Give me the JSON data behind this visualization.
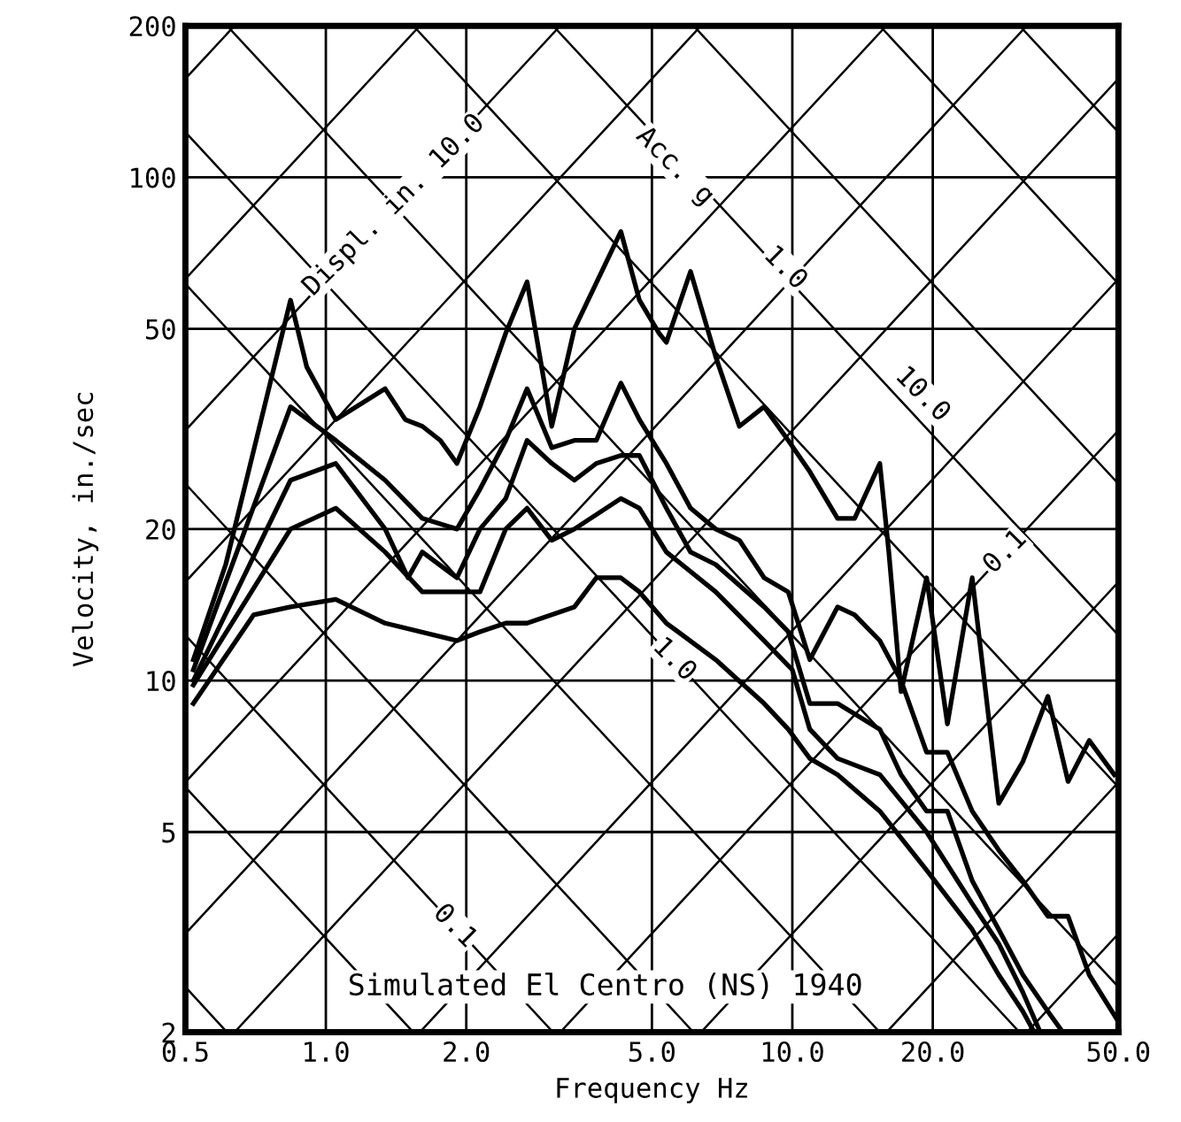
{
  "chart_data": {
    "type": "line",
    "xlabel": "Frequency Hz",
    "ylabel": "Velocity, in./sec",
    "log": "xy",
    "grid": true,
    "xlim": [
      0.5,
      50
    ],
    "ylim": [
      2,
      200
    ],
    "xticks": [
      0.5,
      {
        "value": 1,
        "label": "1.0"
      },
      {
        "value": 2,
        "label": "2.0"
      },
      {
        "value": 5,
        "label": "5.0"
      },
      {
        "value": 10,
        "label": "10.0"
      },
      {
        "value": 20,
        "label": "20.0"
      },
      {
        "value": 50,
        "label": "50.0"
      }
    ],
    "yticks": [
      2,
      5,
      10,
      20,
      50,
      100,
      200
    ],
    "series": [
      {
        "color": "#000000",
        "x": [
          0.52,
          0.61,
          0.84,
          0.91,
          1.05,
          1.34,
          1.48,
          1.61,
          1.76,
          1.91,
          2.14,
          2.43,
          2.7,
          3.05,
          3.41,
          4.29,
          4.7,
          5.18,
          5.37,
          6.05,
          6.85,
          7.7,
          8.7,
          9.8,
          10.9,
          12.5,
          13.6,
          15.4,
          16.1,
          17.1,
          19.4,
          21.5,
          24.3,
          27.7,
          31.2,
          35.3,
          39,
          43.3,
          49
        ],
        "values": [
          11,
          17,
          57,
          42,
          33,
          38,
          33,
          32,
          30,
          27,
          35,
          49,
          62,
          32,
          50,
          78,
          57,
          49,
          47,
          65,
          44,
          32,
          35,
          30,
          26,
          21,
          21,
          27,
          18,
          9.5,
          16,
          8.2,
          16,
          5.7,
          6.9,
          9.3,
          6.3,
          7.6,
          6.5
        ]
      },
      {
        "color": "#000000",
        "x": [
          0.52,
          0.84,
          1.05,
          1.34,
          1.61,
          1.91,
          2.14,
          2.43,
          2.7,
          3.05,
          3.41,
          3.8,
          4.29,
          4.7,
          5.37,
          6.05,
          6.85,
          7.7,
          8.7,
          9.8,
          10.9,
          12.5,
          13.6,
          15.4,
          17.1,
          19.4,
          21.5,
          24.3,
          27.7,
          31.2,
          35.3,
          39,
          43.3,
          50
        ],
        "values": [
          10.5,
          35,
          30,
          25,
          21,
          20,
          24,
          30,
          38,
          29,
          30,
          30,
          39,
          33,
          27,
          22,
          20,
          19,
          16,
          15,
          11,
          14,
          13.5,
          12,
          10,
          7.2,
          7.2,
          5.5,
          4.6,
          4,
          3.4,
          3.4,
          2.6,
          2.1
        ]
      },
      {
        "color": "#000000",
        "x": [
          0.52,
          0.84,
          1.05,
          1.34,
          1.5,
          1.61,
          1.91,
          2.14,
          2.43,
          2.7,
          3.05,
          3.41,
          3.8,
          4.29,
          4.7,
          5.37,
          6.05,
          6.85,
          8.7,
          9.8,
          10.9,
          12.5,
          15.4,
          17.1,
          19.4,
          21.5,
          24.3,
          27.7,
          31.2,
          35.3,
          38
        ],
        "values": [
          10,
          25,
          27,
          20,
          16,
          18,
          16,
          20,
          23,
          30,
          27,
          25,
          27,
          28,
          28,
          22,
          18,
          17,
          14,
          12.5,
          9,
          9,
          8,
          6.5,
          5.5,
          5.5,
          4,
          3.2,
          2.6,
          2.2,
          2
        ]
      },
      {
        "color": "#000000",
        "x": [
          0.52,
          0.84,
          1.05,
          1.34,
          1.61,
          2.14,
          2.43,
          2.7,
          3.05,
          3.41,
          4.29,
          4.7,
          5.37,
          6.85,
          8.7,
          10,
          10.9,
          12.5,
          15.4,
          19.4,
          24.3,
          27.7,
          31.2,
          34
        ],
        "values": [
          9.8,
          20,
          22,
          18,
          15,
          15,
          20,
          22,
          19,
          20,
          23,
          22,
          18,
          15,
          12,
          10.5,
          8,
          7,
          6.5,
          5,
          3.6,
          3,
          2.4,
          2
        ]
      },
      {
        "color": "#000000",
        "x": [
          0.52,
          0.7,
          0.84,
          1.05,
          1.34,
          1.91,
          2.14,
          2.43,
          2.7,
          3.41,
          3.8,
          4.29,
          4.7,
          5.37,
          6.85,
          8.7,
          9.8,
          10.9,
          12.5,
          15.4,
          19.4,
          24.3,
          27.7,
          31.2,
          33
        ],
        "values": [
          9,
          13.5,
          14,
          14.5,
          13,
          12,
          12.5,
          13,
          13,
          14,
          16,
          16,
          15,
          13,
          11,
          9,
          8,
          7,
          6.5,
          5.5,
          4.2,
          3.2,
          2.6,
          2.2,
          2
        ]
      },
      {
        "color": "#000000",
        "x": [
          31.83,
          50
        ],
        "values": [
          2,
          3.14
        ]
      },
      {
        "color": "#000000",
        "x": [
          15.92,
          50
        ],
        "values": [
          2,
          6.28
        ]
      },
      {
        "color": "#000000",
        "x": [
          6.37,
          50
        ],
        "values": [
          2,
          15.7
        ]
      },
      {
        "color": "#000000",
        "x": [
          3.18,
          50
        ],
        "values": [
          2,
          31.4
        ]
      },
      {
        "color": "#000000",
        "x": [
          1.59,
          50
        ],
        "values": [
          2,
          62.8
        ]
      },
      {
        "color": "#000000",
        "x": [
          0.637,
          50
        ],
        "values": [
          2,
          157
        ]
      },
      {
        "color": "#000000",
        "x": [
          0.5,
          31.8
        ],
        "values": [
          3.14,
          200
        ]
      },
      {
        "color": "#000000",
        "x": [
          0.5,
          15.9
        ],
        "values": [
          6.28,
          200
        ]
      },
      {
        "color": "#000000",
        "x": [
          0.5,
          6.37
        ],
        "values": [
          15.7,
          200
        ]
      },
      {
        "color": "#000000",
        "x": [
          0.5,
          3.18
        ],
        "values": [
          31.4,
          200
        ]
      },
      {
        "color": "#000000",
        "x": [
          0.5,
          1.59
        ],
        "values": [
          62.8,
          200
        ]
      },
      {
        "color": "#000000",
        "x": [
          0.5,
          0.637
        ],
        "values": [
          157,
          200
        ]
      },
      {
        "color": "#000000",
        "x": [
          0.5,
          0.614
        ],
        "values": [
          2.46,
          2
        ]
      },
      {
        "color": "#000000",
        "x": [
          0.5,
          1.54
        ],
        "values": [
          6.14,
          2
        ]
      },
      {
        "color": "#000000",
        "x": [
          0.5,
          3.07
        ],
        "values": [
          12.3,
          2
        ]
      },
      {
        "color": "#000000",
        "x": [
          0.5,
          6.14
        ],
        "values": [
          24.6,
          2
        ]
      },
      {
        "color": "#000000",
        "x": [
          0.5,
          15.4
        ],
        "values": [
          61.4,
          2
        ]
      },
      {
        "color": "#000000",
        "x": [
          0.5,
          30.7
        ],
        "values": [
          122.9,
          2
        ]
      },
      {
        "color": "#000000",
        "x": [
          0.614,
          50
        ],
        "values": [
          200,
          2.46
        ]
      },
      {
        "color": "#000000",
        "x": [
          1.54,
          50
        ],
        "values": [
          200,
          6.14
        ]
      },
      {
        "color": "#000000",
        "x": [
          3.07,
          50
        ],
        "values": [
          200,
          12.3
        ]
      },
      {
        "color": "#000000",
        "x": [
          6.14,
          50
        ],
        "values": [
          200,
          24.6
        ]
      },
      {
        "color": "#000000",
        "x": [
          15.4,
          50
        ],
        "values": [
          200,
          61.4
        ]
      },
      {
        "color": "#000000",
        "x": [
          30.7,
          50
        ],
        "values": [
          200,
          122.9
        ]
      }
    ],
    "annotations": [
      {
        "text": "Displ. in. 10.0",
        "x": 1.4,
        "y": 88
      },
      {
        "text": "Acc. g",
        "x": 5.6,
        "y": 105
      },
      {
        "text": "1.0",
        "x": 9.65,
        "y": 66
      },
      {
        "text": "10.0",
        "x": 19,
        "y": 37
      },
      {
        "text": "0.1",
        "x": 28.6,
        "y": 18
      },
      {
        "text": "1.0",
        "x": 5.58,
        "y": 11
      },
      {
        "text": "0.1",
        "x": 1.89,
        "y": 3.25
      },
      "Simulated El Centro (NS) 1940"
    ]
  }
}
